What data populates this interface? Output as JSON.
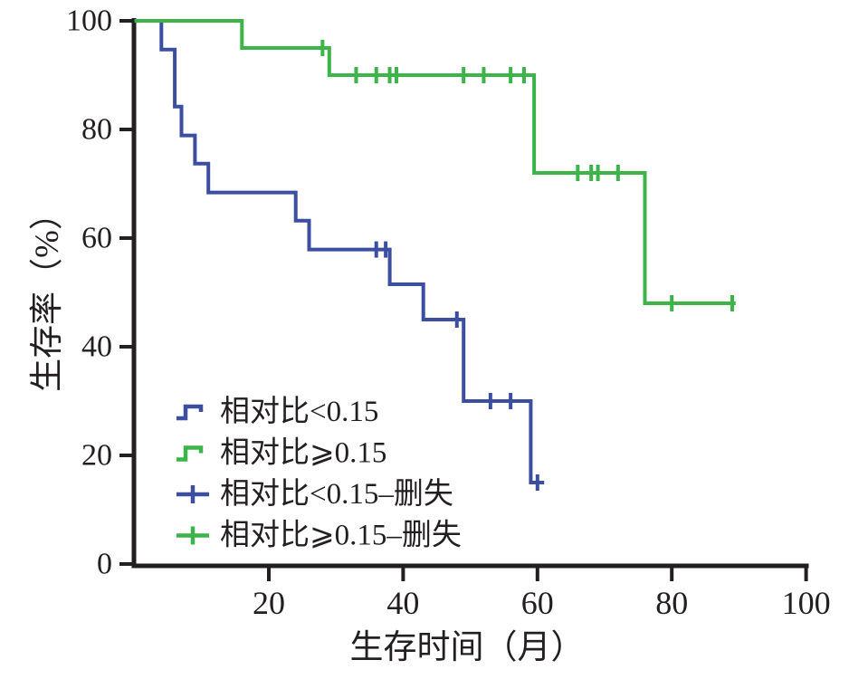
{
  "chart_data": {
    "type": "line",
    "variant": "kaplan-meier-step",
    "title": "",
    "xlabel": "生存时间（月）",
    "ylabel": "生存率（%）",
    "xlim": [
      0,
      100
    ],
    "ylim": [
      0,
      100
    ],
    "x_ticks": [
      20,
      40,
      60,
      80,
      100
    ],
    "y_ticks": [
      0,
      20,
      40,
      60,
      80,
      100
    ],
    "grid": false,
    "axis_color": "#231f20",
    "legend_position": "inside-lower-left",
    "series": [
      {
        "name": "相对比<0.15",
        "color": "#3b4ea0",
        "points": [
          [
            0,
            100
          ],
          [
            4,
            100
          ],
          [
            4,
            94.7
          ],
          [
            6,
            94.7
          ],
          [
            6,
            84.2
          ],
          [
            7,
            84.2
          ],
          [
            7,
            78.9
          ],
          [
            9,
            78.9
          ],
          [
            9,
            73.7
          ],
          [
            11,
            73.7
          ],
          [
            11,
            68.4
          ],
          [
            24,
            68.4
          ],
          [
            24,
            63.2
          ],
          [
            26,
            63.2
          ],
          [
            26,
            57.9
          ],
          [
            38,
            57.9
          ],
          [
            38,
            51.5
          ],
          [
            43,
            51.5
          ],
          [
            43,
            45
          ],
          [
            49,
            45
          ],
          [
            49,
            30
          ],
          [
            59,
            30
          ],
          [
            59,
            15
          ],
          [
            61,
            15
          ]
        ],
        "censored": [
          [
            36,
            57.9
          ],
          [
            37.4,
            57.9
          ],
          [
            48,
            45
          ],
          [
            53,
            30
          ],
          [
            56,
            30
          ],
          [
            60,
            15
          ]
        ]
      },
      {
        "name": "相对比⩾0.15",
        "color": "#3cb44a",
        "points": [
          [
            0,
            100
          ],
          [
            16,
            100
          ],
          [
            16,
            95
          ],
          [
            29,
            95
          ],
          [
            29,
            90
          ],
          [
            59.5,
            90
          ],
          [
            59.5,
            72
          ],
          [
            76,
            72
          ],
          [
            76,
            48
          ],
          [
            89.5,
            48
          ]
        ],
        "censored": [
          [
            28,
            95
          ],
          [
            33,
            90
          ],
          [
            36,
            90
          ],
          [
            38,
            90
          ],
          [
            39,
            90
          ],
          [
            49,
            90
          ],
          [
            52,
            90
          ],
          [
            56,
            90
          ],
          [
            58,
            90
          ],
          [
            66,
            72
          ],
          [
            68,
            72
          ],
          [
            69,
            72
          ],
          [
            72,
            72
          ],
          [
            80,
            48
          ],
          [
            89,
            48
          ]
        ]
      }
    ],
    "legend": [
      {
        "label": "相对比<0.15",
        "color": "#3b4ea0",
        "symbol": "step"
      },
      {
        "label": "相对比⩾0.15",
        "color": "#3cb44a",
        "symbol": "step"
      },
      {
        "label": "相对比<0.15–删失",
        "color": "#3b4ea0",
        "symbol": "plus"
      },
      {
        "label": "相对比⩾0.15–删失",
        "color": "#3cb44a",
        "symbol": "plus"
      }
    ]
  }
}
